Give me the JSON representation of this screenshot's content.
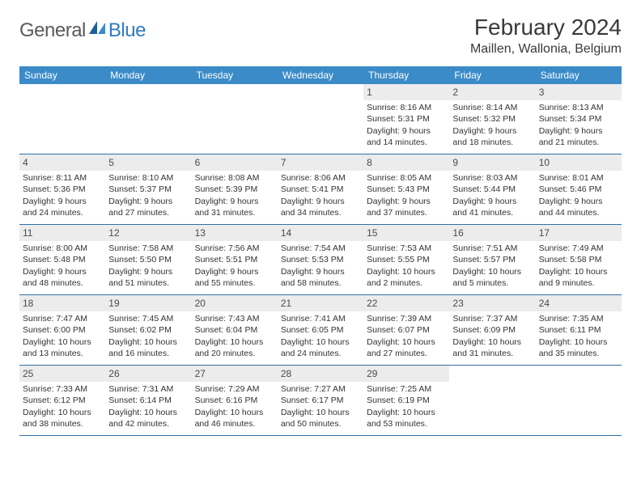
{
  "logo": {
    "general": "General",
    "blue": "Blue"
  },
  "colors": {
    "header_bar": "#3b8bc8",
    "header_text": "#ffffff",
    "day_number_bg": "#ececec",
    "week_border": "#2f6fa8",
    "logo_gray": "#5a5a5a",
    "logo_blue": "#2f7bbf",
    "body_text": "#333333"
  },
  "title": "February 2024",
  "location": "Maillen, Wallonia, Belgium",
  "weekdays": [
    "Sunday",
    "Monday",
    "Tuesday",
    "Wednesday",
    "Thursday",
    "Friday",
    "Saturday"
  ],
  "weeks": [
    [
      null,
      null,
      null,
      null,
      {
        "n": "1",
        "sr": "Sunrise: 8:16 AM",
        "ss": "Sunset: 5:31 PM",
        "d1": "Daylight: 9 hours",
        "d2": "and 14 minutes."
      },
      {
        "n": "2",
        "sr": "Sunrise: 8:14 AM",
        "ss": "Sunset: 5:32 PM",
        "d1": "Daylight: 9 hours",
        "d2": "and 18 minutes."
      },
      {
        "n": "3",
        "sr": "Sunrise: 8:13 AM",
        "ss": "Sunset: 5:34 PM",
        "d1": "Daylight: 9 hours",
        "d2": "and 21 minutes."
      }
    ],
    [
      {
        "n": "4",
        "sr": "Sunrise: 8:11 AM",
        "ss": "Sunset: 5:36 PM",
        "d1": "Daylight: 9 hours",
        "d2": "and 24 minutes."
      },
      {
        "n": "5",
        "sr": "Sunrise: 8:10 AM",
        "ss": "Sunset: 5:37 PM",
        "d1": "Daylight: 9 hours",
        "d2": "and 27 minutes."
      },
      {
        "n": "6",
        "sr": "Sunrise: 8:08 AM",
        "ss": "Sunset: 5:39 PM",
        "d1": "Daylight: 9 hours",
        "d2": "and 31 minutes."
      },
      {
        "n": "7",
        "sr": "Sunrise: 8:06 AM",
        "ss": "Sunset: 5:41 PM",
        "d1": "Daylight: 9 hours",
        "d2": "and 34 minutes."
      },
      {
        "n": "8",
        "sr": "Sunrise: 8:05 AM",
        "ss": "Sunset: 5:43 PM",
        "d1": "Daylight: 9 hours",
        "d2": "and 37 minutes."
      },
      {
        "n": "9",
        "sr": "Sunrise: 8:03 AM",
        "ss": "Sunset: 5:44 PM",
        "d1": "Daylight: 9 hours",
        "d2": "and 41 minutes."
      },
      {
        "n": "10",
        "sr": "Sunrise: 8:01 AM",
        "ss": "Sunset: 5:46 PM",
        "d1": "Daylight: 9 hours",
        "d2": "and 44 minutes."
      }
    ],
    [
      {
        "n": "11",
        "sr": "Sunrise: 8:00 AM",
        "ss": "Sunset: 5:48 PM",
        "d1": "Daylight: 9 hours",
        "d2": "and 48 minutes."
      },
      {
        "n": "12",
        "sr": "Sunrise: 7:58 AM",
        "ss": "Sunset: 5:50 PM",
        "d1": "Daylight: 9 hours",
        "d2": "and 51 minutes."
      },
      {
        "n": "13",
        "sr": "Sunrise: 7:56 AM",
        "ss": "Sunset: 5:51 PM",
        "d1": "Daylight: 9 hours",
        "d2": "and 55 minutes."
      },
      {
        "n": "14",
        "sr": "Sunrise: 7:54 AM",
        "ss": "Sunset: 5:53 PM",
        "d1": "Daylight: 9 hours",
        "d2": "and 58 minutes."
      },
      {
        "n": "15",
        "sr": "Sunrise: 7:53 AM",
        "ss": "Sunset: 5:55 PM",
        "d1": "Daylight: 10 hours",
        "d2": "and 2 minutes."
      },
      {
        "n": "16",
        "sr": "Sunrise: 7:51 AM",
        "ss": "Sunset: 5:57 PM",
        "d1": "Daylight: 10 hours",
        "d2": "and 5 minutes."
      },
      {
        "n": "17",
        "sr": "Sunrise: 7:49 AM",
        "ss": "Sunset: 5:58 PM",
        "d1": "Daylight: 10 hours",
        "d2": "and 9 minutes."
      }
    ],
    [
      {
        "n": "18",
        "sr": "Sunrise: 7:47 AM",
        "ss": "Sunset: 6:00 PM",
        "d1": "Daylight: 10 hours",
        "d2": "and 13 minutes."
      },
      {
        "n": "19",
        "sr": "Sunrise: 7:45 AM",
        "ss": "Sunset: 6:02 PM",
        "d1": "Daylight: 10 hours",
        "d2": "and 16 minutes."
      },
      {
        "n": "20",
        "sr": "Sunrise: 7:43 AM",
        "ss": "Sunset: 6:04 PM",
        "d1": "Daylight: 10 hours",
        "d2": "and 20 minutes."
      },
      {
        "n": "21",
        "sr": "Sunrise: 7:41 AM",
        "ss": "Sunset: 6:05 PM",
        "d1": "Daylight: 10 hours",
        "d2": "and 24 minutes."
      },
      {
        "n": "22",
        "sr": "Sunrise: 7:39 AM",
        "ss": "Sunset: 6:07 PM",
        "d1": "Daylight: 10 hours",
        "d2": "and 27 minutes."
      },
      {
        "n": "23",
        "sr": "Sunrise: 7:37 AM",
        "ss": "Sunset: 6:09 PM",
        "d1": "Daylight: 10 hours",
        "d2": "and 31 minutes."
      },
      {
        "n": "24",
        "sr": "Sunrise: 7:35 AM",
        "ss": "Sunset: 6:11 PM",
        "d1": "Daylight: 10 hours",
        "d2": "and 35 minutes."
      }
    ],
    [
      {
        "n": "25",
        "sr": "Sunrise: 7:33 AM",
        "ss": "Sunset: 6:12 PM",
        "d1": "Daylight: 10 hours",
        "d2": "and 38 minutes."
      },
      {
        "n": "26",
        "sr": "Sunrise: 7:31 AM",
        "ss": "Sunset: 6:14 PM",
        "d1": "Daylight: 10 hours",
        "d2": "and 42 minutes."
      },
      {
        "n": "27",
        "sr": "Sunrise: 7:29 AM",
        "ss": "Sunset: 6:16 PM",
        "d1": "Daylight: 10 hours",
        "d2": "and 46 minutes."
      },
      {
        "n": "28",
        "sr": "Sunrise: 7:27 AM",
        "ss": "Sunset: 6:17 PM",
        "d1": "Daylight: 10 hours",
        "d2": "and 50 minutes."
      },
      {
        "n": "29",
        "sr": "Sunrise: 7:25 AM",
        "ss": "Sunset: 6:19 PM",
        "d1": "Daylight: 10 hours",
        "d2": "and 53 minutes."
      },
      null,
      null
    ]
  ]
}
